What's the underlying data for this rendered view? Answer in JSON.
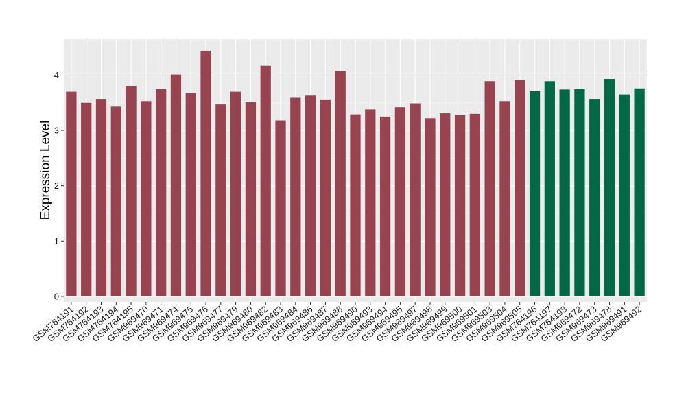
{
  "chart_data": {
    "type": "bar",
    "title": "",
    "xlabel": "",
    "ylabel": "Expression Level",
    "ylim": [
      -0.1,
      4.65
    ],
    "yticks": [
      0,
      1,
      2,
      3,
      4
    ],
    "grid": true,
    "legend": "none",
    "categories": [
      "GSM764191",
      "GSM764192",
      "GSM764193",
      "GSM764194",
      "GSM764195",
      "GSM969470",
      "GSM969471",
      "GSM969474",
      "GSM969475",
      "GSM969476",
      "GSM969477",
      "GSM969479",
      "GSM969480",
      "GSM969482",
      "GSM969483",
      "GSM969484",
      "GSM969486",
      "GSM969487",
      "GSM969488",
      "GSM969490",
      "GSM969493",
      "GSM969494",
      "GSM969495",
      "GSM969497",
      "GSM969498",
      "GSM969499",
      "GSM969500",
      "GSM969501",
      "GSM969503",
      "GSM969504",
      "GSM969505",
      "GSM764196",
      "GSM764197",
      "GSM764198",
      "GSM969472",
      "GSM969473",
      "GSM969478",
      "GSM969491",
      "GSM969492"
    ],
    "values": [
      3.7,
      3.5,
      3.57,
      3.43,
      3.8,
      3.53,
      3.75,
      4.01,
      3.67,
      4.44,
      3.47,
      3.7,
      3.51,
      4.17,
      3.18,
      3.59,
      3.63,
      3.56,
      4.07,
      3.29,
      3.38,
      3.25,
      3.42,
      3.49,
      3.22,
      3.31,
      3.28,
      3.3,
      3.89,
      3.53,
      3.91,
      3.71,
      3.89,
      3.74,
      3.75,
      3.57,
      3.93,
      3.65,
      3.76
    ],
    "groups": [
      0,
      0,
      0,
      0,
      0,
      0,
      0,
      0,
      0,
      0,
      0,
      0,
      0,
      0,
      0,
      0,
      0,
      0,
      0,
      0,
      0,
      0,
      0,
      0,
      0,
      0,
      0,
      0,
      0,
      0,
      0,
      1,
      1,
      1,
      1,
      1,
      1,
      1,
      1
    ],
    "colors": [
      "#974350",
      "#036845"
    ]
  }
}
